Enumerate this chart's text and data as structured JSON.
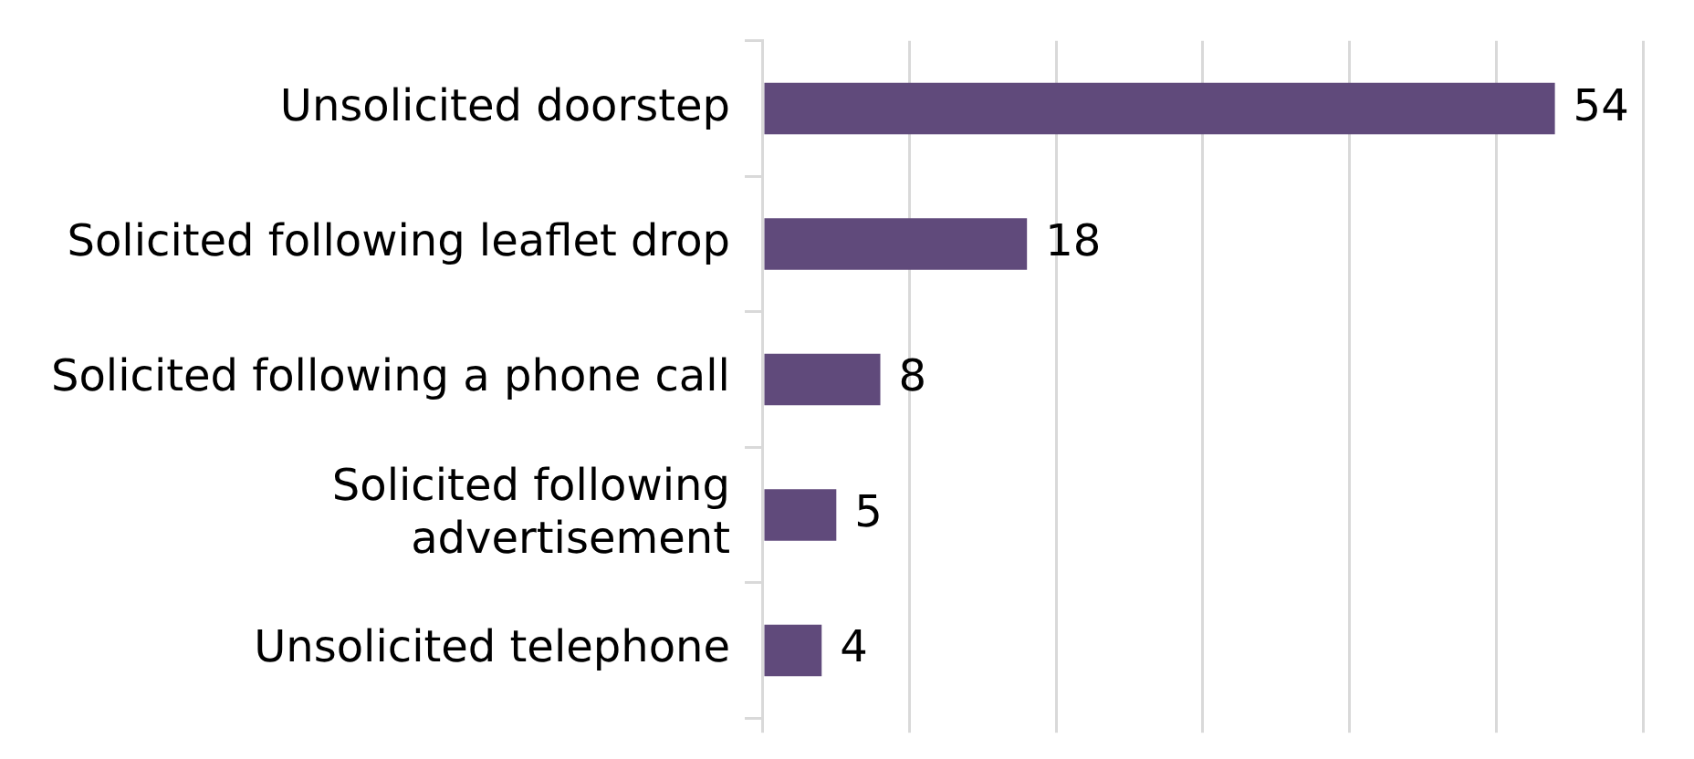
{
  "chart_data": {
    "type": "bar",
    "orientation": "horizontal",
    "categories": [
      "Unsolicited doorstep",
      "Solicited following leaflet drop",
      "Solicited following a phone call",
      "Solicited following advertisement",
      "Unsolicited telephone"
    ],
    "values": [
      54,
      18,
      8,
      5,
      4
    ],
    "color": "#604a7b",
    "grid": "x",
    "tick_labels": "y",
    "data_labels": true
  }
}
